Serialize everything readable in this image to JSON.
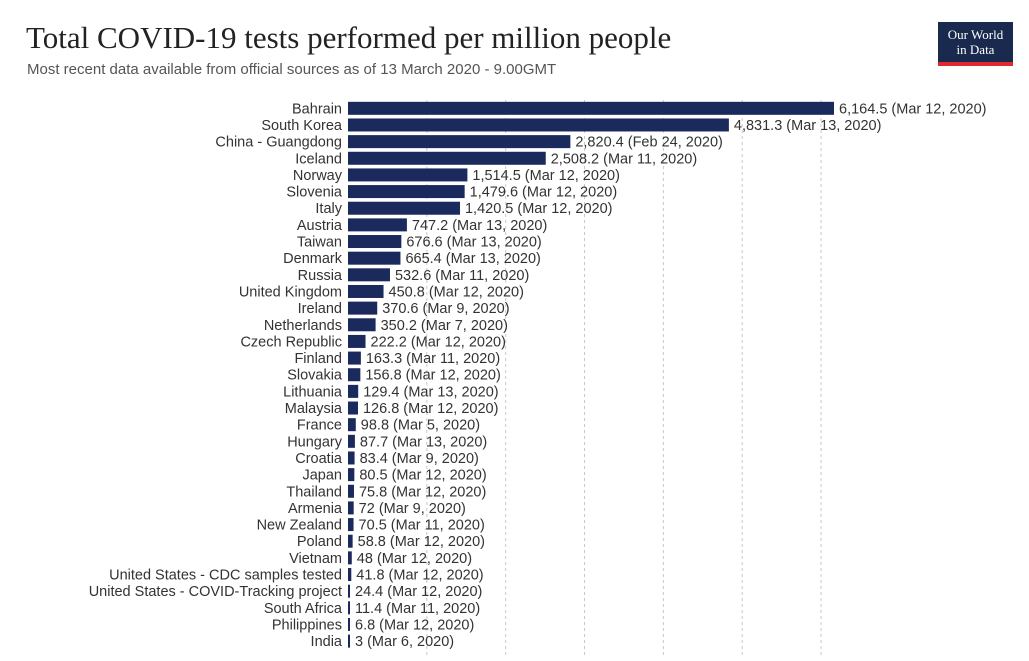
{
  "header": {
    "title": "Total COVID-19 tests performed per million people",
    "subtitle": "Most recent data available from official sources as of 13 March 2020 - 9.00GMT"
  },
  "logo": {
    "line1": "Our World",
    "line2": "in Data"
  },
  "colors": {
    "bar": "#1b2a5c",
    "grid": "#c8c8c8"
  },
  "chart_data": {
    "type": "bar",
    "orientation": "horizontal",
    "title": "Total COVID-19 tests performed per million people",
    "subtitle": "Most recent data available from official sources as of 13 March 2020 - 9.00GMT",
    "xlim": [
      0,
      6164.5
    ],
    "grid": true,
    "categories": [
      "Bahrain",
      "South Korea",
      "China - Guangdong",
      "Iceland",
      "Norway",
      "Slovenia",
      "Italy",
      "Austria",
      "Taiwan",
      "Denmark",
      "Russia",
      "United Kingdom",
      "Ireland",
      "Netherlands",
      "Czech Republic",
      "Finland",
      "Slovakia",
      "Lithuania",
      "Malaysia",
      "France",
      "Hungary",
      "Croatia",
      "Japan",
      "Thailand",
      "Armenia",
      "New Zealand",
      "Poland",
      "Vietnam",
      "United States - CDC samples tested",
      "United States - COVID-Tracking project",
      "South Africa",
      "Philippines",
      "India"
    ],
    "values": [
      6164.5,
      4831.3,
      2820.4,
      2508.2,
      1514.5,
      1479.6,
      1420.5,
      747.2,
      676.6,
      665.4,
      532.6,
      450.8,
      370.6,
      350.2,
      222.2,
      163.3,
      156.8,
      129.4,
      126.8,
      98.8,
      87.7,
      83.4,
      80.5,
      75.8,
      72,
      70.5,
      58.8,
      48,
      41.8,
      24.4,
      11.4,
      6.8,
      3
    ],
    "labels": [
      "6,164.5 (Mar 12, 2020)",
      "4,831.3 (Mar 13, 2020)",
      "2,820.4 (Feb 24, 2020)",
      "2,508.2 (Mar 11, 2020)",
      "1,514.5 (Mar 12, 2020)",
      "1,479.6 (Mar 12, 2020)",
      "1,420.5 (Mar 12, 2020)",
      "747.2 (Mar 13, 2020)",
      "676.6 (Mar 13, 2020)",
      "665.4 (Mar 13, 2020)",
      "532.6 (Mar 11, 2020)",
      "450.8 (Mar 12, 2020)",
      "370.6 (Mar 9, 2020)",
      "350.2 (Mar 7, 2020)",
      "222.2 (Mar 12, 2020)",
      "163.3 (Mar 11, 2020)",
      "156.8 (Mar 12, 2020)",
      "129.4 (Mar 13, 2020)",
      "126.8 (Mar 12, 2020)",
      "98.8 (Mar 5, 2020)",
      "87.7 (Mar 13, 2020)",
      "83.4 (Mar 9, 2020)",
      "80.5 (Mar 12, 2020)",
      "75.8 (Mar 12, 2020)",
      "72 (Mar 9, 2020)",
      "70.5 (Mar 11, 2020)",
      "58.8 (Mar 12, 2020)",
      "48 (Mar 12, 2020)",
      "41.8 (Mar 12, 2020)",
      "24.4 (Mar 12, 2020)",
      "11.4 (Mar 11, 2020)",
      "6.8 (Mar 12, 2020)",
      "3 (Mar 6, 2020)"
    ]
  }
}
